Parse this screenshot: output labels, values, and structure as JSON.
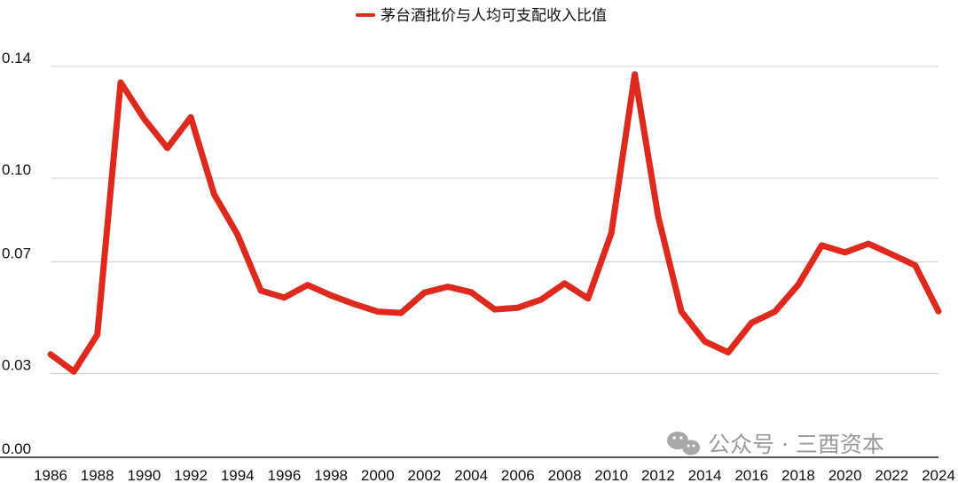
{
  "chart_data": {
    "type": "line",
    "legend_position": "top-center",
    "grid": true,
    "x": [
      1986,
      1987,
      1988,
      1989,
      1990,
      1991,
      1992,
      1993,
      1994,
      1995,
      1996,
      1997,
      1998,
      1999,
      2000,
      2001,
      2002,
      2003,
      2004,
      2005,
      2006,
      2007,
      2008,
      2009,
      2010,
      2011,
      2012,
      2013,
      2014,
      2015,
      2016,
      2017,
      2018,
      2019,
      2020,
      2021,
      2022,
      2023,
      2024
    ],
    "x_tick_labels": [
      "1986",
      "1988",
      "1990",
      "1992",
      "1994",
      "1996",
      "1998",
      "2000",
      "2002",
      "2004",
      "2006",
      "2008",
      "2010",
      "2012",
      "2014",
      "2016",
      "2018",
      "2020",
      "2022",
      "2024"
    ],
    "y_tick_values": [
      0.0,
      0.03,
      0.07,
      0.1,
      0.14
    ],
    "y_tick_labels": [
      "0.00",
      "0.03",
      "0.07",
      "0.10",
      "0.14"
    ],
    "ylim": [
      0,
      0.14
    ],
    "series": [
      {
        "name": "茅台酒批价与人均可支配收入比值",
        "color": "#de2a1c",
        "values": [
          0.0369,
          0.0307,
          0.0439,
          0.1343,
          0.1213,
          0.1108,
          0.1218,
          0.0942,
          0.0798,
          0.0597,
          0.0572,
          0.0617,
          0.058,
          0.0549,
          0.0522,
          0.0517,
          0.059,
          0.0611,
          0.0591,
          0.053,
          0.0536,
          0.0565,
          0.0623,
          0.0569,
          0.0803,
          0.1372,
          0.0864,
          0.0522,
          0.0415,
          0.0376,
          0.0482,
          0.0522,
          0.0618,
          0.0759,
          0.0734,
          0.0765,
          0.0727,
          0.0688,
          0.0523
        ]
      }
    ]
  },
  "watermark": {
    "text": "公众号 · 三酉资本",
    "icon": "wechat-icon"
  }
}
